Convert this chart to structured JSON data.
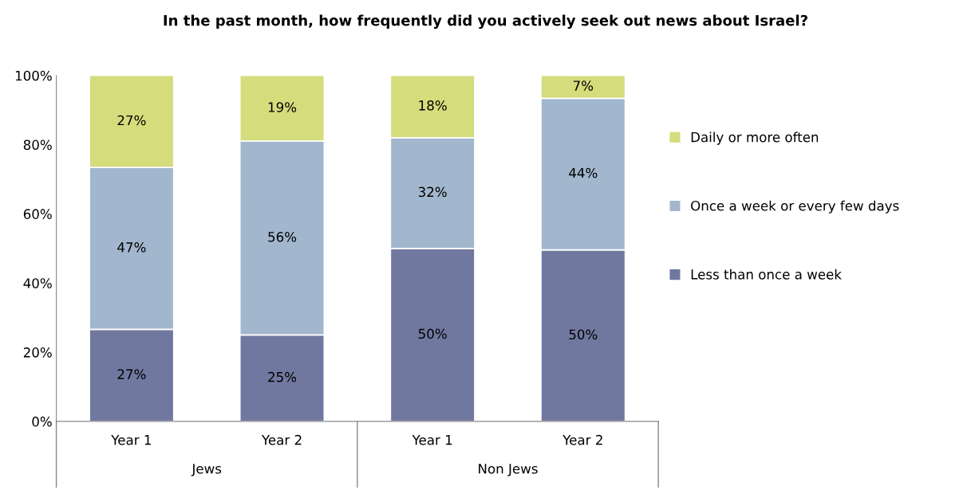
{
  "chart_data": {
    "type": "bar",
    "stacked": true,
    "title": "In the past month, how frequently did you actively seek out news about Israel?",
    "categories": [
      "Year 1",
      "Year 2",
      "Year 1",
      "Year 2"
    ],
    "series": [
      {
        "name": "Less than once a week",
        "color": "#7178a0",
        "values": [
          26.6,
          25,
          50,
          49.6
        ],
        "value_labels": [
          "27%",
          "25%",
          "50%",
          "50%"
        ]
      },
      {
        "name": "Once a week or every few days",
        "color": "#a2b6cd",
        "values": [
          46.8,
          56,
          32,
          43.8
        ],
        "value_labels": [
          "47%",
          "56%",
          "32%",
          "44%"
        ]
      },
      {
        "name": "Daily or more often",
        "color": "#d4dc7c",
        "values": [
          26.6,
          19,
          18,
          6.6
        ],
        "value_labels": [
          "27%",
          "19%",
          "18%",
          "7%"
        ]
      }
    ],
    "annotations": [
      "Jews",
      "Non Jews"
    ],
    "ylim": [
      0,
      100
    ],
    "yticks": [
      {
        "value": 0,
        "label": "0%"
      },
      {
        "value": 20,
        "label": "20%"
      },
      {
        "value": 40,
        "label": "40%"
      },
      {
        "value": 60,
        "label": "60%"
      },
      {
        "value": 80,
        "label": "80%"
      },
      {
        "value": 100,
        "label": "100%"
      }
    ],
    "grid": false,
    "legend": "right"
  }
}
